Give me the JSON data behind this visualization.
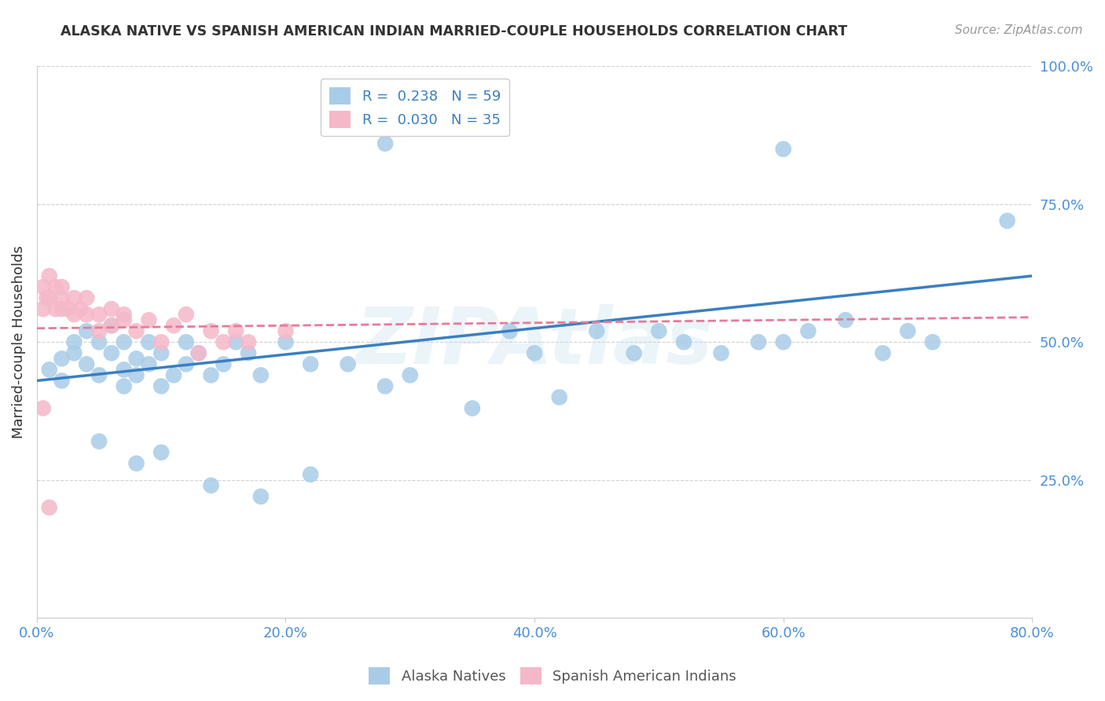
{
  "title": "ALASKA NATIVE VS SPANISH AMERICAN INDIAN MARRIED-COUPLE HOUSEHOLDS CORRELATION CHART",
  "source": "Source: ZipAtlas.com",
  "ylabel": "Married-couple Households",
  "legend_label1": "Alaska Natives",
  "legend_label2": "Spanish American Indians",
  "R1": 0.238,
  "N1": 59,
  "R2": 0.03,
  "N2": 35,
  "xlim": [
    0.0,
    0.8
  ],
  "ylim": [
    0.0,
    1.0
  ],
  "xticks": [
    0.0,
    0.2,
    0.4,
    0.6,
    0.8
  ],
  "yticks": [
    0.25,
    0.5,
    0.75,
    1.0
  ],
  "xtick_labels": [
    "0.0%",
    "20.0%",
    "40.0%",
    "60.0%",
    "80.0%"
  ],
  "ytick_labels": [
    "25.0%",
    "50.0%",
    "75.0%",
    "100.0%"
  ],
  "color_blue": "#a8cce8",
  "color_pink": "#f5b8c8",
  "line_color_blue": "#3a7fc1",
  "line_color_pink": "#e87a9a",
  "background_color": "#ffffff",
  "grid_color": "#cccccc",
  "watermark": "ZIPAtlas",
  "blue_line_y0": 0.43,
  "blue_line_y1": 0.62,
  "pink_line_y0": 0.525,
  "pink_line_y1": 0.545,
  "blue_x": [
    0.01,
    0.02,
    0.02,
    0.03,
    0.03,
    0.04,
    0.04,
    0.05,
    0.05,
    0.06,
    0.06,
    0.07,
    0.07,
    0.07,
    0.08,
    0.08,
    0.09,
    0.09,
    0.1,
    0.1,
    0.11,
    0.12,
    0.12,
    0.13,
    0.14,
    0.15,
    0.16,
    0.17,
    0.18,
    0.2,
    0.22,
    0.25,
    0.28,
    0.3,
    0.35,
    0.38,
    0.4,
    0.42,
    0.45,
    0.48,
    0.5,
    0.52,
    0.55,
    0.58,
    0.6,
    0.62,
    0.65,
    0.68,
    0.7,
    0.72,
    0.28,
    0.6,
    0.78,
    0.05,
    0.08,
    0.1,
    0.14,
    0.18,
    0.22
  ],
  "blue_y": [
    0.45,
    0.43,
    0.47,
    0.5,
    0.48,
    0.46,
    0.52,
    0.44,
    0.5,
    0.48,
    0.53,
    0.45,
    0.5,
    0.42,
    0.47,
    0.44,
    0.5,
    0.46,
    0.48,
    0.42,
    0.44,
    0.5,
    0.46,
    0.48,
    0.44,
    0.46,
    0.5,
    0.48,
    0.44,
    0.5,
    0.46,
    0.46,
    0.42,
    0.44,
    0.38,
    0.52,
    0.48,
    0.4,
    0.52,
    0.48,
    0.52,
    0.5,
    0.48,
    0.5,
    0.5,
    0.52,
    0.54,
    0.48,
    0.52,
    0.5,
    0.86,
    0.85,
    0.72,
    0.32,
    0.28,
    0.3,
    0.24,
    0.22,
    0.26
  ],
  "pink_x": [
    0.005,
    0.005,
    0.008,
    0.01,
    0.01,
    0.015,
    0.015,
    0.02,
    0.02,
    0.02,
    0.025,
    0.03,
    0.03,
    0.035,
    0.04,
    0.04,
    0.05,
    0.05,
    0.06,
    0.06,
    0.07,
    0.07,
    0.08,
    0.09,
    0.1,
    0.11,
    0.12,
    0.13,
    0.14,
    0.15,
    0.16,
    0.17,
    0.2,
    0.005,
    0.01
  ],
  "pink_y": [
    0.56,
    0.6,
    0.58,
    0.62,
    0.58,
    0.6,
    0.56,
    0.58,
    0.6,
    0.56,
    0.56,
    0.58,
    0.55,
    0.56,
    0.55,
    0.58,
    0.55,
    0.52,
    0.56,
    0.53,
    0.54,
    0.55,
    0.52,
    0.54,
    0.5,
    0.53,
    0.55,
    0.48,
    0.52,
    0.5,
    0.52,
    0.5,
    0.52,
    0.38,
    0.2
  ]
}
